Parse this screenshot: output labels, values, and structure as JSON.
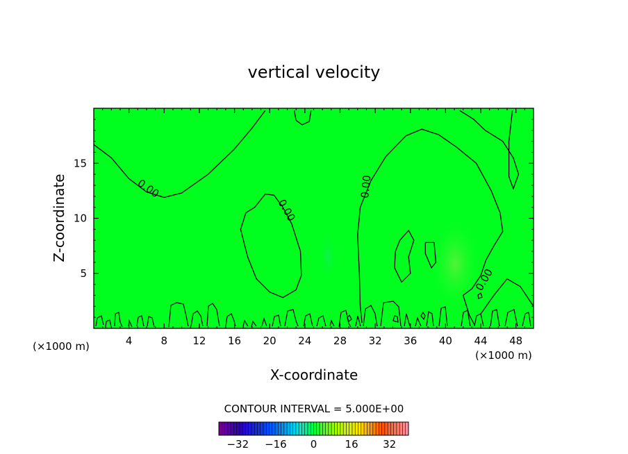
{
  "chart_data": {
    "type": "heatmap",
    "title": "vertical velocity",
    "xlabel": "X-coordinate",
    "ylabel": "Z-coordinate",
    "x_unit_left": "(×1000 m)",
    "x_unit_right": "(×1000 m)",
    "xlim": [
      0,
      50
    ],
    "ylim": [
      0,
      20
    ],
    "x_ticks": [
      4,
      8,
      12,
      16,
      20,
      24,
      28,
      32,
      36,
      40,
      44,
      48
    ],
    "y_ticks": [
      5,
      10,
      15
    ],
    "contour_interval_text": "CONTOUR INTERVAL = 5.000E+00",
    "contour_label": "0.00",
    "field_color": "#00ff1e",
    "colorbar_ticks": [
      -32,
      -16,
      0,
      16,
      32
    ],
    "colorbar_range": [
      -40,
      40
    ],
    "contours": [
      {
        "points": [
          [
            0,
            16.7
          ],
          [
            2,
            15.5
          ],
          [
            4,
            13.6
          ],
          [
            6,
            12.4
          ],
          [
            8,
            11.9
          ],
          [
            10,
            12.3
          ],
          [
            13,
            14.0
          ],
          [
            16,
            16.3
          ],
          [
            18,
            18.2
          ],
          [
            19.5,
            19.8
          ]
        ]
      },
      {
        "points": [
          [
            18.3,
            11.0
          ],
          [
            19.5,
            12.2
          ],
          [
            20.5,
            12.1
          ],
          [
            21.5,
            11.0
          ],
          [
            22.5,
            9.5
          ],
          [
            23.5,
            7.0
          ],
          [
            23.6,
            4.8
          ],
          [
            23,
            3.5
          ],
          [
            21.5,
            2.8
          ],
          [
            20,
            3.3
          ],
          [
            18.5,
            4.5
          ],
          [
            17.5,
            6.5
          ],
          [
            16.7,
            9.0
          ],
          [
            17.3,
            10.5
          ],
          [
            18.3,
            11.0
          ]
        ]
      },
      {
        "points": [
          [
            22.8,
            19.8
          ],
          [
            23,
            18.9
          ],
          [
            23.7,
            18.5
          ],
          [
            24.5,
            18.8
          ],
          [
            24.7,
            19.8
          ]
        ]
      },
      {
        "points": [
          [
            30.5,
            0.5
          ],
          [
            30.3,
            2.0
          ],
          [
            30.2,
            5.0
          ],
          [
            30.0,
            8.5
          ],
          [
            30.3,
            11.0
          ],
          [
            31.5,
            13.4
          ],
          [
            33.2,
            15.6
          ],
          [
            35.5,
            17.5
          ],
          [
            37.3,
            18.1
          ],
          [
            39.2,
            17.6
          ],
          [
            41.2,
            16.5
          ],
          [
            43.5,
            15.0
          ],
          [
            45.2,
            12.5
          ],
          [
            46.2,
            10.5
          ],
          [
            46.5,
            8.8
          ],
          [
            45.5,
            7.5
          ],
          [
            44.6,
            6.2
          ],
          [
            44.0,
            4.8
          ],
          [
            43.0,
            3.6
          ],
          [
            42.0,
            3.0
          ],
          [
            42.7,
            1.2
          ],
          [
            43.3,
            0.3
          ]
        ]
      },
      {
        "points": [
          [
            44.0,
            1.3
          ],
          [
            45.5,
            3.0
          ],
          [
            47.0,
            4.5
          ],
          [
            48.5,
            3.8
          ],
          [
            50.0,
            2.0
          ]
        ]
      },
      {
        "points": [
          [
            41.6,
            19.8
          ],
          [
            43.2,
            19.0
          ],
          [
            44.5,
            18.0
          ],
          [
            46.5,
            17.0
          ],
          [
            47.7,
            15.5
          ],
          [
            48.3,
            14.0
          ],
          [
            47.7,
            12.7
          ],
          [
            47.2,
            13.8
          ],
          [
            47.2,
            17.0
          ],
          [
            47.6,
            19.8
          ]
        ]
      },
      {
        "points": [
          [
            34.8,
            8.0
          ],
          [
            35.8,
            8.9
          ],
          [
            36.4,
            8.0
          ],
          [
            35.8,
            6.5
          ],
          [
            36.0,
            5.0
          ],
          [
            35.0,
            4.2
          ],
          [
            34.2,
            5.5
          ],
          [
            34.3,
            7.0
          ],
          [
            34.8,
            8.0
          ]
        ]
      },
      {
        "points": [
          [
            37.7,
            7.8
          ],
          [
            38.7,
            7.8
          ],
          [
            38.9,
            6.0
          ],
          [
            38.4,
            5.5
          ],
          [
            37.7,
            6.8
          ],
          [
            37.7,
            7.8
          ]
        ]
      }
    ]
  }
}
